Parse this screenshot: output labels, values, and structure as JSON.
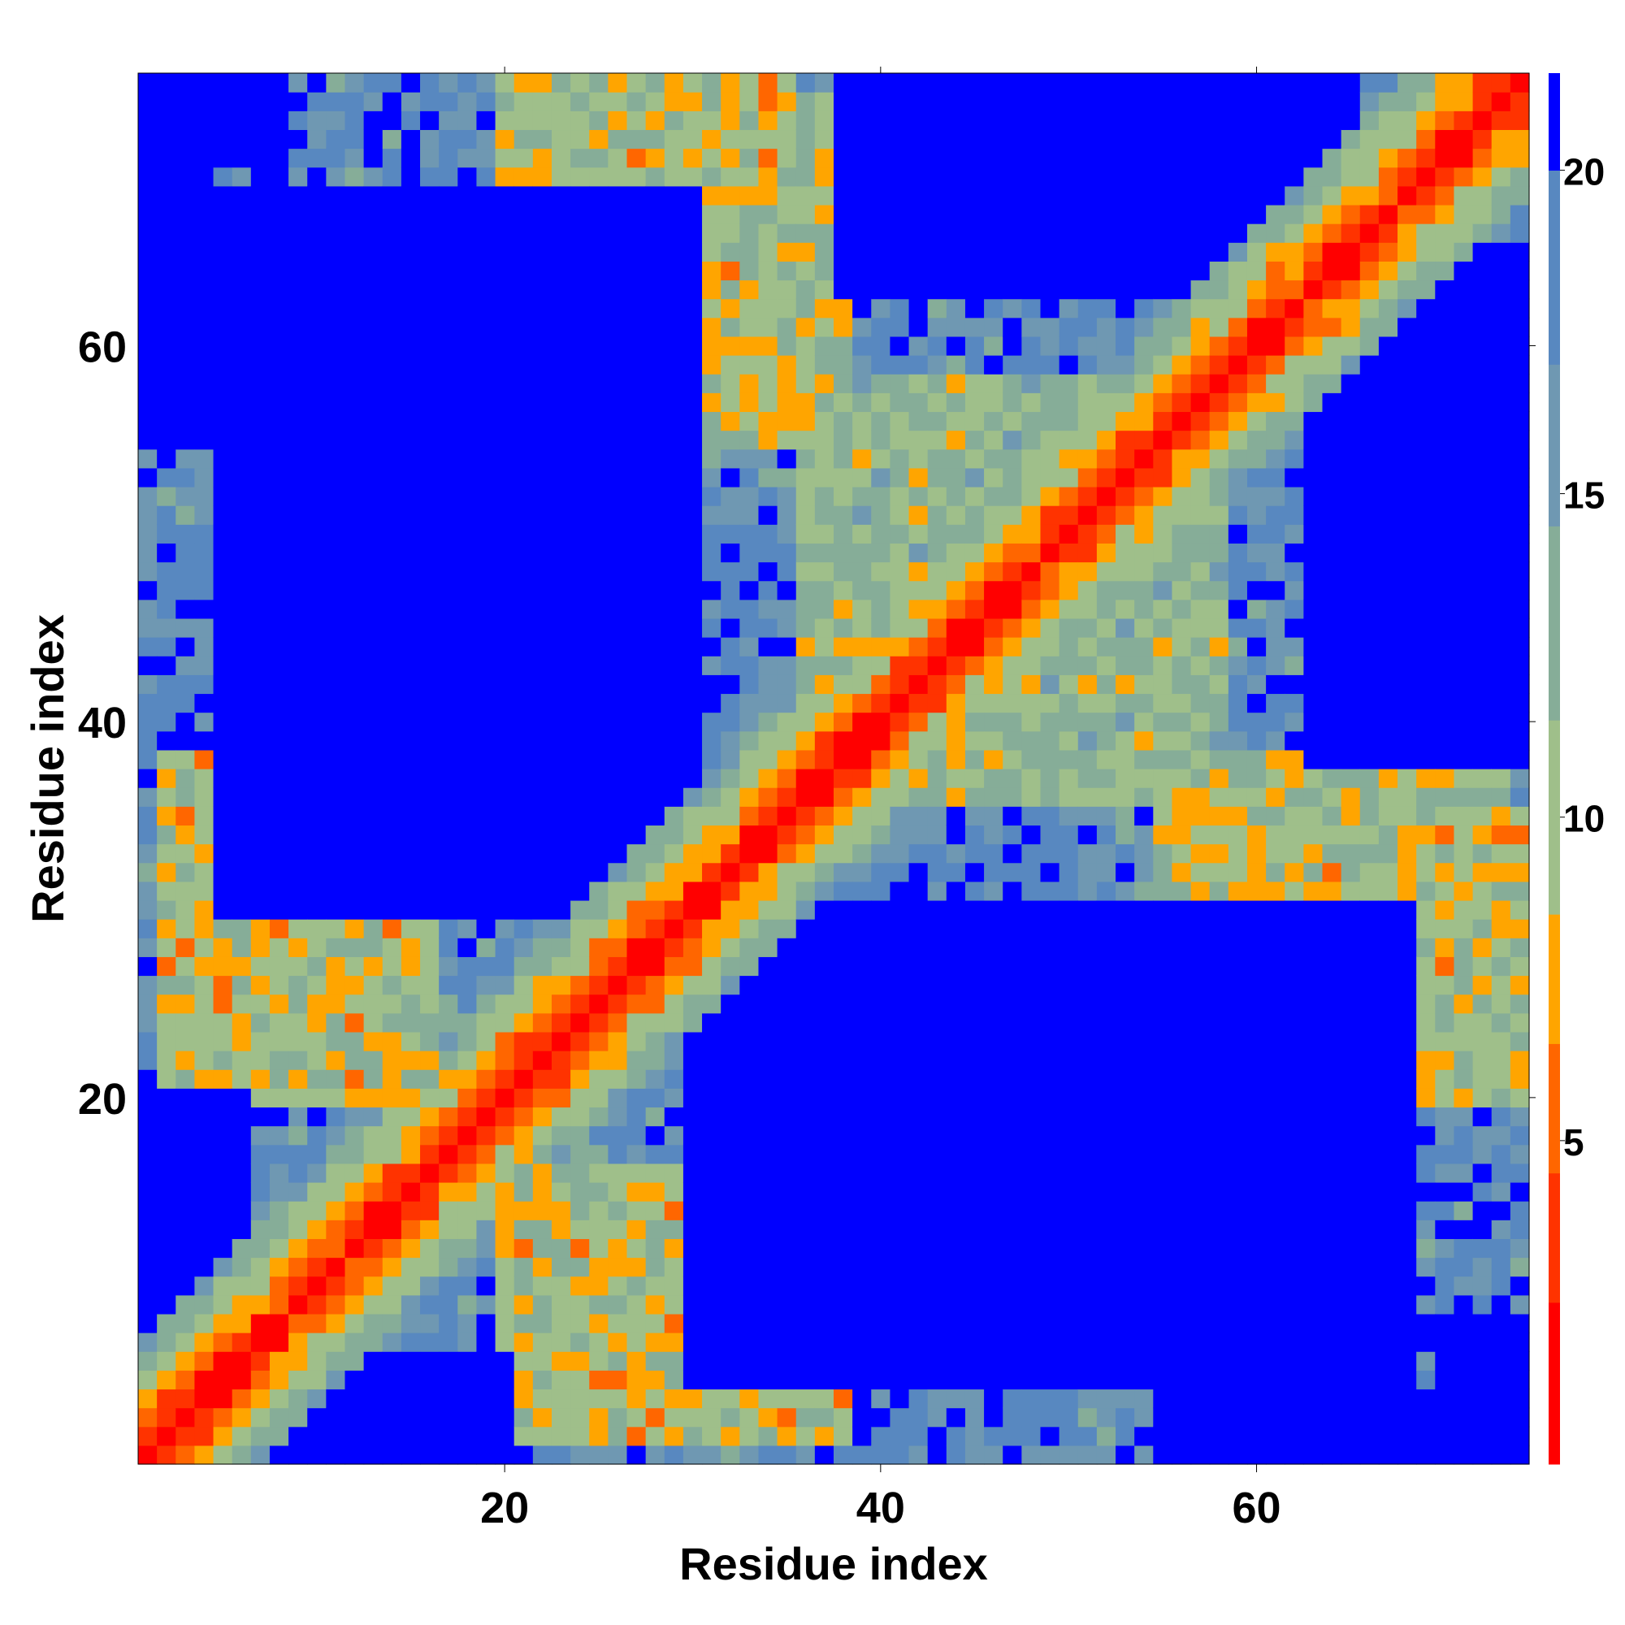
{
  "chart_data": {
    "type": "heatmap",
    "title": "",
    "xlabel": "Residue index",
    "ylabel": "Residue index",
    "n_residues": 74,
    "x_range": [
      0.5,
      74.5
    ],
    "y_range": [
      0.5,
      74.5
    ],
    "x_ticks": [
      20,
      40,
      60
    ],
    "y_ticks": [
      20,
      40,
      60
    ],
    "colorbar": {
      "ticks": [
        5,
        10,
        15,
        20
      ],
      "range": [
        0,
        21.5
      ],
      "colors": [
        {
          "max": 2.5,
          "color": "#ff0000"
        },
        {
          "max": 4.5,
          "color": "#ff3300"
        },
        {
          "max": 6.5,
          "color": "#ff6600"
        },
        {
          "max": 8.5,
          "color": "#ffa500"
        },
        {
          "max": 11.5,
          "color": "#9fbf8a"
        },
        {
          "max": 14.5,
          "color": "#86ad98"
        },
        {
          "max": 17.0,
          "color": "#6f98b2"
        },
        {
          "max": 20.0,
          "color": "#5888c0"
        },
        {
          "max": 99,
          "color": "#0000ff"
        }
      ]
    },
    "description_of_values": "Pairwise residue distance map; values increase away from the diagonal; blue = beyond cutoff (>20).",
    "contact_regions": [
      {
        "x_range": [
          20,
          35
        ],
        "y_range": [
          55,
          74
        ],
        "level": 6
      },
      {
        "x_range": [
          2,
          15
        ],
        "y_range": [
          20,
          38
        ],
        "level": 6
      },
      {
        "x_range": [
          22,
          36
        ],
        "y_range": [
          5,
          16
        ],
        "level": 7
      },
      {
        "x_range": [
          55,
          73
        ],
        "y_range": [
          20,
          38
        ],
        "level": 7
      },
      {
        "x_range": [
          36,
          52
        ],
        "y_range": [
          38,
          58
        ],
        "level": 8
      }
    ],
    "far_regions": [
      {
        "x_range": [
          5,
          30
        ],
        "y_range": [
          30,
          65
        ]
      },
      {
        "x_range": [
          40,
          68
        ],
        "y_range": [
          5,
          30
        ]
      },
      {
        "x_range": [
          38,
          62
        ],
        "y_range": [
          63,
          75
        ]
      },
      {
        "x_range": [
          64,
          75
        ],
        "y_range": [
          40,
          65
        ]
      },
      {
        "x_range": [
          0,
          6
        ],
        "y_range": [
          0,
          20
        ]
      },
      {
        "x_range": [
          0,
          4
        ],
        "y_range": [
          55,
          75
        ]
      },
      {
        "x_range": [
          70,
          75
        ],
        "y_range": [
          0,
          8
        ]
      }
    ]
  }
}
